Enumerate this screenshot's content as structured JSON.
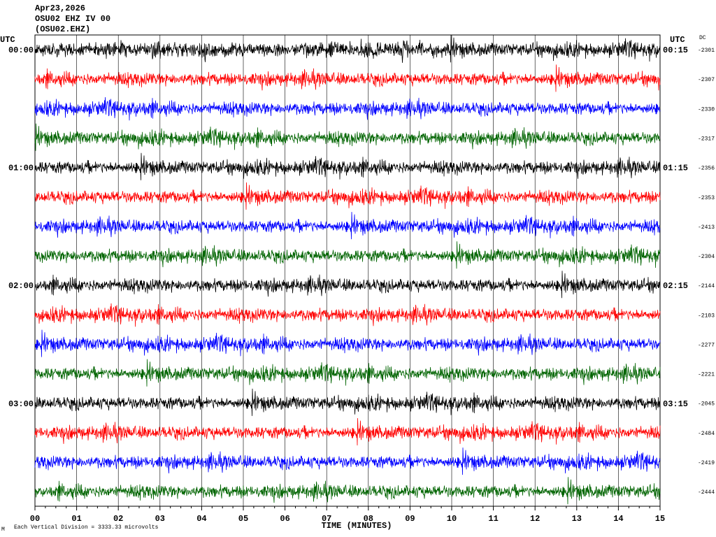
{
  "header": {
    "lines": [
      "Apr23,2026",
      "OSU02 EHZ IV 00",
      "(OSU02.EHZ)"
    ]
  },
  "utc_left": "UTC",
  "utc_right": "UTC",
  "dc_label": "DC",
  "left_labels": [
    "00:00",
    "01:00",
    "02:00",
    "03:00"
  ],
  "right_labels": [
    "00:15",
    "01:15",
    "02:15",
    "03:15"
  ],
  "dc_values": [
    "-2301",
    "-2307",
    "-2330",
    "-2317",
    "-2356",
    "-2353",
    "-2413",
    "-2304",
    "-2144",
    "-2103",
    "-2277",
    "-2221",
    "-2045",
    "-2484",
    "-2419",
    "-2444"
  ],
  "trace_colors": [
    "#000000",
    "#ff0000",
    "#0000ff",
    "#006400"
  ],
  "x_axis": {
    "labels": [
      "00",
      "01",
      "02",
      "03",
      "04",
      "05",
      "06",
      "07",
      "08",
      "09",
      "10",
      "11",
      "12",
      "13",
      "14",
      "15"
    ],
    "title": "TIME (MINUTES)"
  },
  "footer": {
    "mark": "M",
    "text": "Each Vertical Division = 3333.33 microvolts"
  }
}
